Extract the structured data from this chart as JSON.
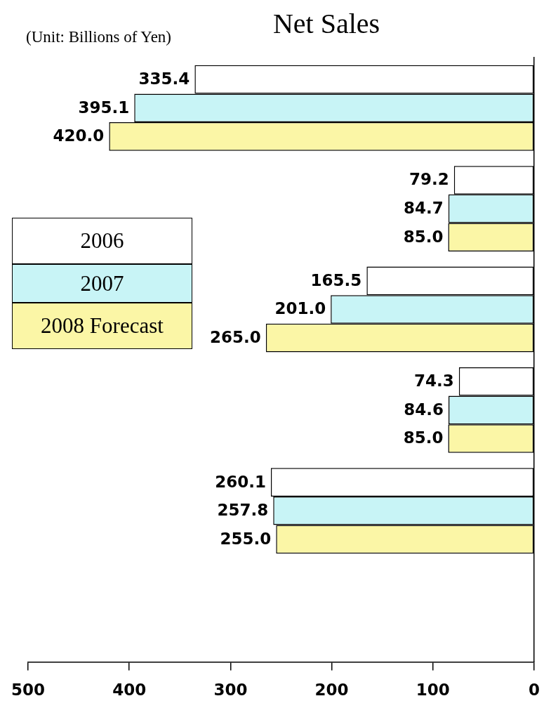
{
  "chart_data": {
    "type": "bar",
    "orientation": "horizontal",
    "title": "Net Sales",
    "subtitle": "(Unit: Billions of Yen)",
    "categories": [
      null,
      null,
      null,
      null,
      null,
      null
    ],
    "series": [
      {
        "name": "2006",
        "color": "#ffffff",
        "values": [
          335.4,
          79.2,
          165.5,
          74.3,
          260.1,
          null
        ],
        "value_labels": [
          "335.4",
          "79.2",
          "165.5",
          "74.3",
          "260.1",
          null
        ]
      },
      {
        "name": "2007",
        "color": "#c8f4f6",
        "values": [
          395.1,
          84.7,
          201,
          84.6,
          257.8,
          null
        ],
        "value_labels": [
          "395.1",
          "84.7",
          "201.0",
          "84.6",
          "257.8",
          null
        ]
      },
      {
        "name": "2008 Forecast",
        "color": "#fbf6a6",
        "values": [
          420,
          85,
          265,
          85,
          255,
          null
        ],
        "value_labels": [
          "420.0",
          "85.0",
          "265.0",
          "85.0",
          "255.0",
          null
        ]
      }
    ],
    "xlim": [
      500,
      0
    ],
    "xticks": [
      500,
      400,
      300,
      200,
      100,
      0
    ],
    "grid": false,
    "legend": "left",
    "tick_labels": "x"
  }
}
